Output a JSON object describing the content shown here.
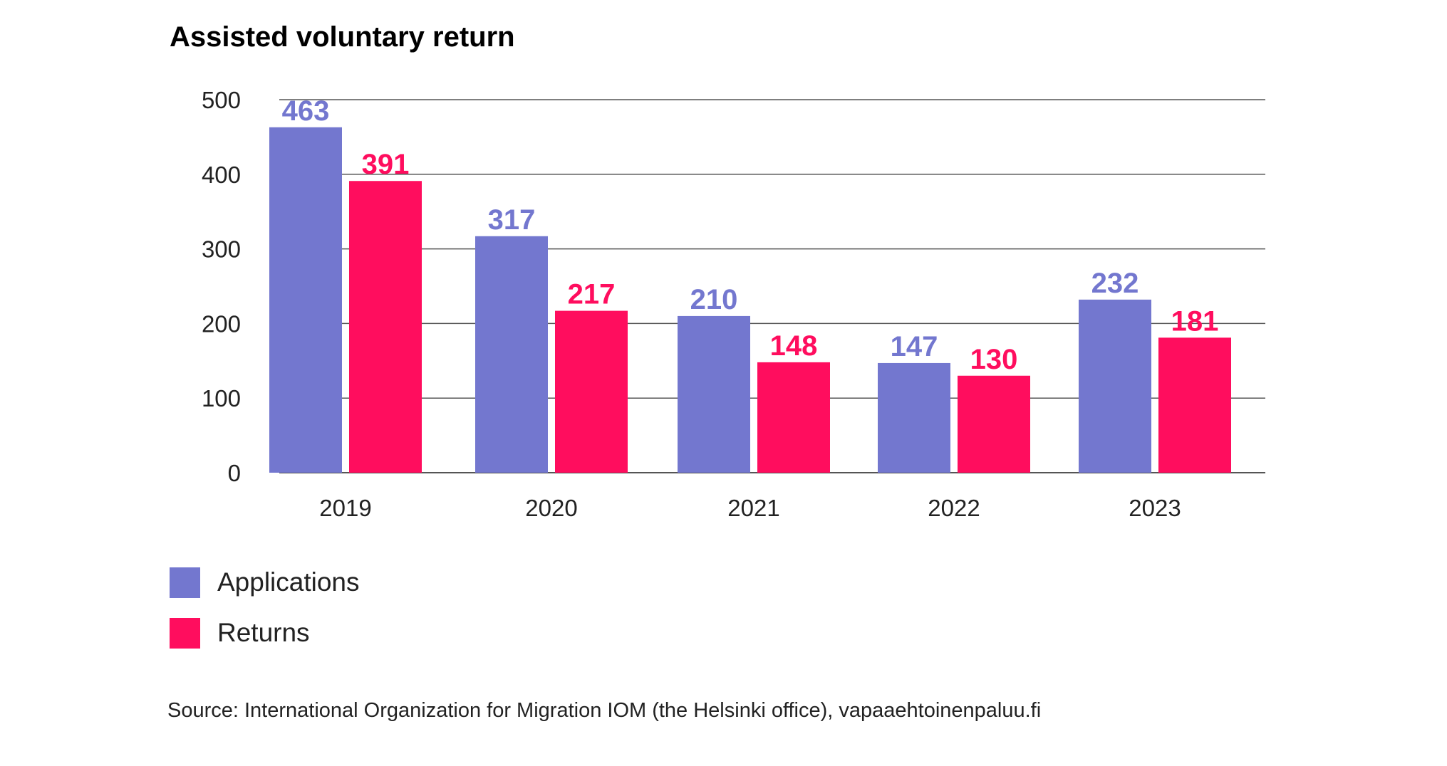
{
  "title": "Assisted voluntary return",
  "source": "Source: International Organization for Migration IOM (the Helsinki office), vapaaehtoinenpaluu.fi",
  "colors": {
    "applications": "#7377cf",
    "returns": "#ff0d5e",
    "grid": "#555555"
  },
  "chart_data": {
    "type": "bar",
    "title": "Assisted voluntary return",
    "categories": [
      "2019",
      "2020",
      "2021",
      "2022",
      "2023"
    ],
    "series": [
      {
        "name": "Applications",
        "values": [
          463,
          317,
          210,
          147,
          232
        ],
        "color": "#7377cf"
      },
      {
        "name": "Returns",
        "values": [
          391,
          217,
          148,
          130,
          181
        ],
        "color": "#ff0d5e"
      }
    ],
    "ylim": [
      0,
      500
    ],
    "yticks": [
      0,
      100,
      200,
      300,
      400,
      500
    ],
    "grid": true,
    "legend": "bottom-left",
    "xlabel": "",
    "ylabel": ""
  }
}
